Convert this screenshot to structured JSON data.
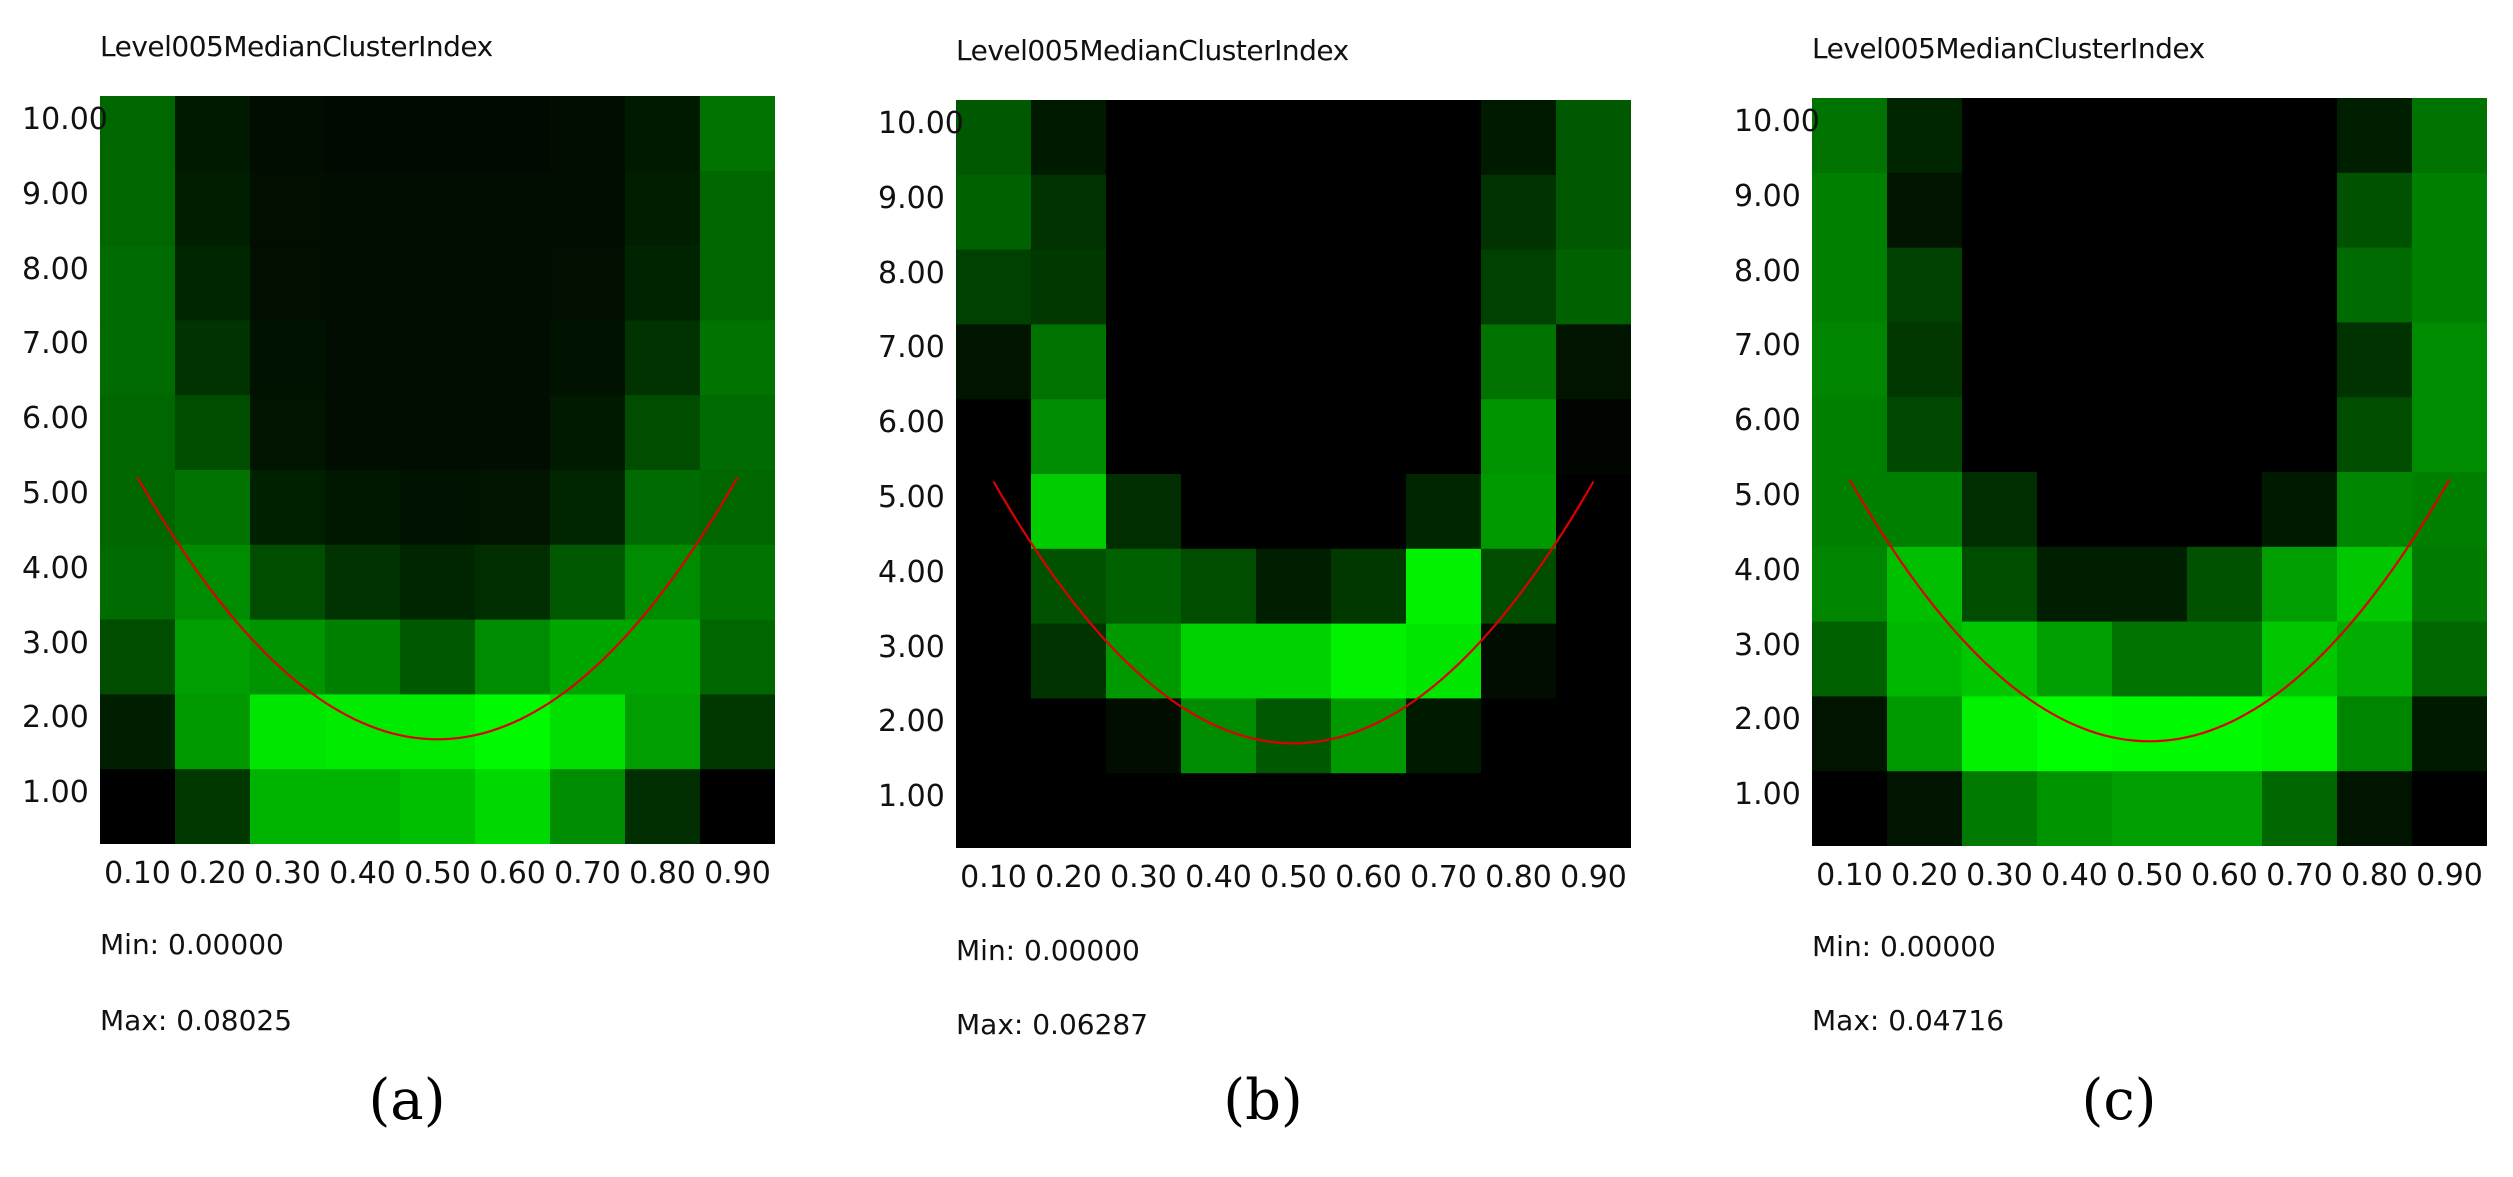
{
  "colors": {
    "accent": "#00ff00",
    "curve": "#dd0000",
    "background": "#000000"
  },
  "chart_data": [
    {
      "type": "heatmap",
      "title": "Level005MedianClusterIndex",
      "caption": "(a)",
      "x_tick_labels": [
        "0.10",
        "0.20",
        "0.30",
        "0.40",
        "0.50",
        "0.60",
        "0.70",
        "0.80",
        "0.90"
      ],
      "y_tick_labels": [
        "10.00",
        "9.00",
        "8.00",
        "7.00",
        "6.00",
        "5.00",
        "4.00",
        "3.00",
        "2.00",
        "1.00"
      ],
      "min_label": "Min:",
      "min_value": "0.00000",
      "max_label": "Max:",
      "max_value": "0.08025",
      "xlim": [
        0.05,
        0.95
      ],
      "ylim": [
        0.5,
        10.5
      ],
      "curve": {
        "color": "#dd0000",
        "x": [
          0.1,
          0.5,
          0.9
        ],
        "y": [
          5.4,
          1.9,
          5.4
        ]
      },
      "grid": [
        [
          0.4,
          0.1,
          0.05,
          0.04,
          0.04,
          0.04,
          0.05,
          0.1,
          0.45
        ],
        [
          0.4,
          0.12,
          0.06,
          0.05,
          0.05,
          0.05,
          0.05,
          0.12,
          0.4
        ],
        [
          0.42,
          0.15,
          0.06,
          0.05,
          0.05,
          0.05,
          0.06,
          0.14,
          0.4
        ],
        [
          0.42,
          0.2,
          0.07,
          0.05,
          0.05,
          0.05,
          0.07,
          0.2,
          0.45
        ],
        [
          0.4,
          0.3,
          0.08,
          0.05,
          0.05,
          0.05,
          0.1,
          0.3,
          0.42
        ],
        [
          0.4,
          0.45,
          0.13,
          0.09,
          0.07,
          0.08,
          0.15,
          0.42,
          0.4
        ],
        [
          0.42,
          0.55,
          0.3,
          0.2,
          0.15,
          0.18,
          0.35,
          0.55,
          0.45
        ],
        [
          0.3,
          0.62,
          0.58,
          0.5,
          0.35,
          0.55,
          0.65,
          0.65,
          0.4
        ],
        [
          0.12,
          0.6,
          0.9,
          0.92,
          0.92,
          0.98,
          0.88,
          0.62,
          0.22
        ],
        [
          0.0,
          0.22,
          0.7,
          0.7,
          0.75,
          0.85,
          0.55,
          0.18,
          0.0
        ]
      ]
    },
    {
      "type": "heatmap",
      "title": "Level005MedianClusterIndex",
      "caption": "(b)",
      "x_tick_labels": [
        "0.10",
        "0.20",
        "0.30",
        "0.40",
        "0.50",
        "0.60",
        "0.70",
        "0.80",
        "0.90"
      ],
      "y_tick_labels": [
        "10.00",
        "9.00",
        "8.00",
        "7.00",
        "6.00",
        "5.00",
        "4.00",
        "3.00",
        "2.00",
        "1.00"
      ],
      "min_label": "Min:",
      "min_value": "0.00000",
      "max_label": "Max:",
      "max_value": "0.06287",
      "xlim": [
        0.05,
        0.95
      ],
      "ylim": [
        0.5,
        10.5
      ],
      "curve": {
        "color": "#dd0000",
        "x": [
          0.1,
          0.5,
          0.9
        ],
        "y": [
          5.4,
          1.9,
          5.4
        ]
      },
      "grid": [
        [
          0.35,
          0.1,
          0.0,
          0.0,
          0.0,
          0.0,
          0.0,
          0.1,
          0.35
        ],
        [
          0.38,
          0.2,
          0.0,
          0.0,
          0.0,
          0.0,
          0.0,
          0.2,
          0.35
        ],
        [
          0.25,
          0.22,
          0.0,
          0.0,
          0.0,
          0.0,
          0.0,
          0.25,
          0.38
        ],
        [
          0.08,
          0.45,
          0.0,
          0.0,
          0.0,
          0.0,
          0.0,
          0.45,
          0.08
        ],
        [
          0.0,
          0.55,
          0.0,
          0.0,
          0.0,
          0.0,
          0.0,
          0.58,
          0.02
        ],
        [
          0.0,
          0.8,
          0.18,
          0.0,
          0.0,
          0.0,
          0.15,
          0.6,
          0.0
        ],
        [
          0.0,
          0.32,
          0.38,
          0.3,
          0.12,
          0.22,
          0.95,
          0.3,
          0.0
        ],
        [
          0.0,
          0.2,
          0.6,
          0.82,
          0.82,
          0.95,
          0.9,
          0.05,
          0.0
        ],
        [
          0.0,
          0.0,
          0.05,
          0.55,
          0.35,
          0.6,
          0.1,
          0.0,
          0.0
        ],
        [
          0.0,
          0.0,
          0.0,
          0.0,
          0.0,
          0.0,
          0.0,
          0.0,
          0.0
        ]
      ]
    },
    {
      "type": "heatmap",
      "title": "Level005MedianClusterIndex",
      "caption": "(c)",
      "x_tick_labels": [
        "0.10",
        "0.20",
        "0.30",
        "0.40",
        "0.50",
        "0.60",
        "0.70",
        "0.80",
        "0.90"
      ],
      "y_tick_labels": [
        "10.00",
        "9.00",
        "8.00",
        "7.00",
        "6.00",
        "5.00",
        "4.00",
        "3.00",
        "2.00",
        "1.00"
      ],
      "min_label": "Min:",
      "min_value": "0.00000",
      "max_label": "Max:",
      "max_value": "0.04716",
      "xlim": [
        0.05,
        0.95
      ],
      "ylim": [
        0.5,
        10.5
      ],
      "curve": {
        "color": "#dd0000",
        "x": [
          0.1,
          0.5,
          0.9
        ],
        "y": [
          5.4,
          1.9,
          5.4
        ]
      },
      "grid": [
        [
          0.45,
          0.15,
          0.0,
          0.0,
          0.0,
          0.0,
          0.0,
          0.12,
          0.45
        ],
        [
          0.5,
          0.08,
          0.0,
          0.0,
          0.0,
          0.0,
          0.0,
          0.32,
          0.5
        ],
        [
          0.5,
          0.25,
          0.0,
          0.0,
          0.0,
          0.0,
          0.0,
          0.42,
          0.5
        ],
        [
          0.52,
          0.22,
          0.0,
          0.0,
          0.0,
          0.0,
          0.0,
          0.2,
          0.55
        ],
        [
          0.5,
          0.28,
          0.0,
          0.0,
          0.0,
          0.0,
          0.0,
          0.3,
          0.55
        ],
        [
          0.5,
          0.5,
          0.18,
          0.0,
          0.0,
          0.0,
          0.1,
          0.52,
          0.5
        ],
        [
          0.52,
          0.75,
          0.3,
          0.12,
          0.12,
          0.32,
          0.62,
          0.78,
          0.48
        ],
        [
          0.38,
          0.72,
          0.78,
          0.62,
          0.45,
          0.45,
          0.78,
          0.68,
          0.4
        ],
        [
          0.08,
          0.6,
          0.95,
          1.0,
          0.98,
          0.98,
          0.95,
          0.52,
          0.1
        ],
        [
          0.0,
          0.08,
          0.48,
          0.58,
          0.62,
          0.62,
          0.4,
          0.08,
          0.0
        ]
      ]
    }
  ]
}
